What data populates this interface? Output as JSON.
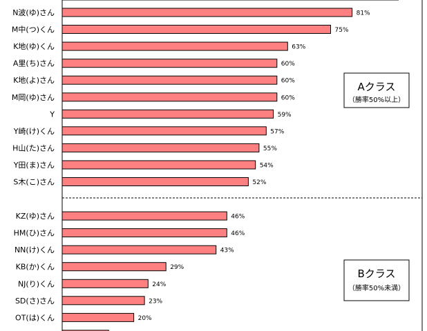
{
  "chart_data": {
    "type": "bar",
    "orientation": "horizontal",
    "categories": [
      "N波(ゆ)さん",
      "M中(つ)くん",
      "K地(ゆ)くん",
      "A里(ち)さん",
      "K地(よ)さん",
      "M岡(ゆ)さん",
      "Y",
      "Y崎(け)くん",
      "H山(た)さん",
      "Y田(ま)さん",
      "S木(こ)さん",
      "KZ(ゆ)さん",
      "HM(ひ)さん",
      "NN(け)くん",
      "KB(か)くん",
      "NJ(り)くん",
      "SD(さ)さん",
      "OT(は)くん",
      ""
    ],
    "values": [
      81,
      75,
      63,
      60,
      60,
      60,
      59,
      57,
      55,
      54,
      52,
      46,
      46,
      43,
      29,
      24,
      23,
      20,
      13
    ],
    "value_labels": [
      "81%",
      "75%",
      "63%",
      "60%",
      "60%",
      "60%",
      "59%",
      "57%",
      "55%",
      "54%",
      "52%",
      "46%",
      "46%",
      "43%",
      "29%",
      "24%",
      "23%",
      "20%",
      ""
    ],
    "xlim": [
      0,
      100
    ],
    "bar_color": "#ff8080",
    "groups": [
      {
        "title": "Aクラス",
        "subtitle": "（勝率50%以上）"
      },
      {
        "title": "Bクラス",
        "subtitle": "（勝率50%未満）"
      }
    ],
    "grid": false,
    "legend": "none"
  }
}
